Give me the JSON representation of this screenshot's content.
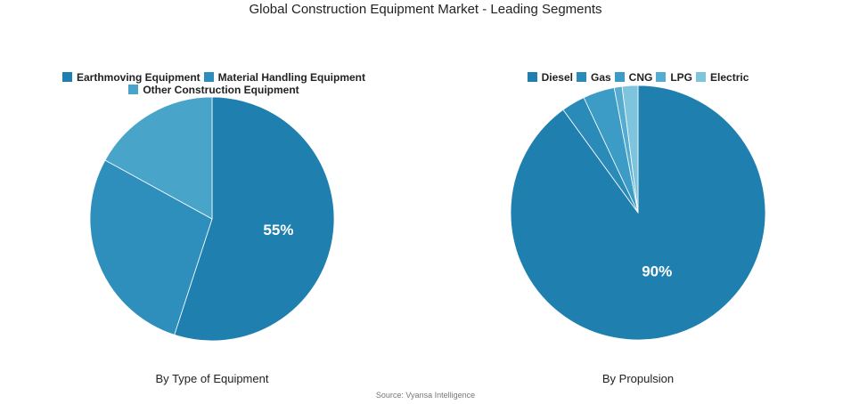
{
  "title": "Global Construction Equipment Market - Leading Segments",
  "source": "Source: Vyansa Intelligence",
  "chart_data": [
    {
      "type": "pie",
      "subtitle": "By Type of Equipment",
      "legend_position": "top",
      "categories": [
        "Earthmoving Equipment",
        "Material Handling Equipment",
        "Other Construction Equipment"
      ],
      "values": [
        55,
        28,
        17
      ],
      "labels": [
        "55%",
        "",
        ""
      ],
      "colors": [
        "#1f80b0",
        "#2e8fbd",
        "#48a4c9"
      ]
    },
    {
      "type": "pie",
      "subtitle": "By Propulsion",
      "legend_position": "top",
      "categories": [
        "Diesel",
        "Gas",
        "CNG",
        "LPG",
        "Electric"
      ],
      "values": [
        90,
        3,
        4,
        1,
        2
      ],
      "labels": [
        "90%",
        "",
        "",
        "",
        ""
      ],
      "colors": [
        "#1f80b0",
        "#2a8bb8",
        "#3d9cc6",
        "#55acd0",
        "#7ec4dc"
      ]
    }
  ]
}
